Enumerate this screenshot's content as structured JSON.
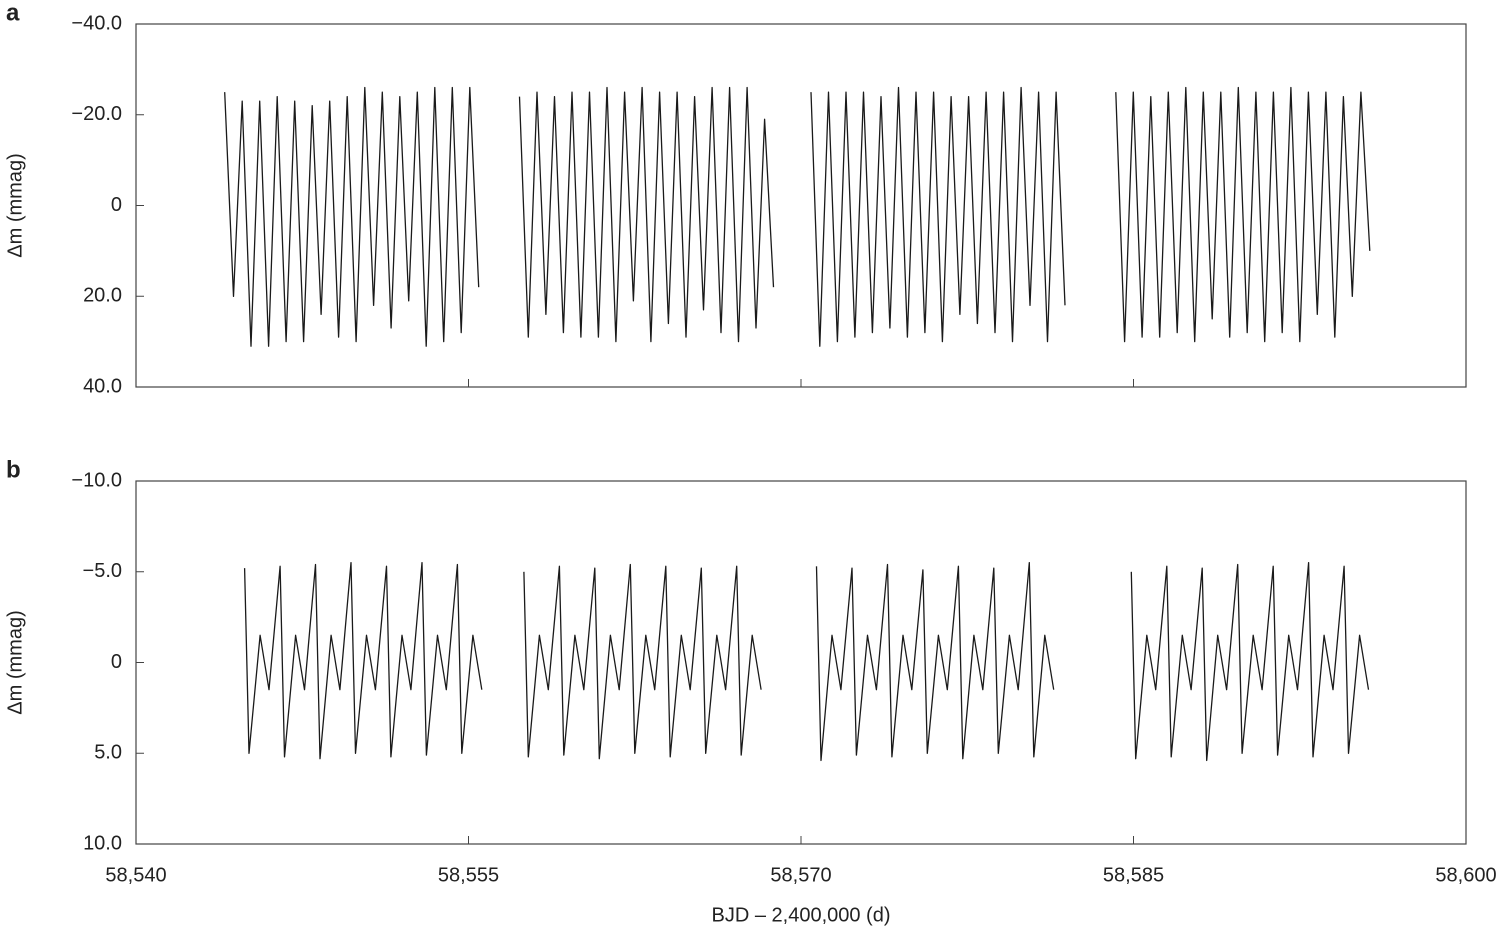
{
  "chart_data": [
    {
      "type": "line",
      "panel_label": "a",
      "ylabel": "Δm (mmag)",
      "xlim": [
        58540,
        58600
      ],
      "xticks": [
        58540,
        58555,
        58570,
        58585,
        58600
      ],
      "ylim": [
        40,
        -40
      ],
      "yticks": [
        {
          "value": -40,
          "label": "−40.0"
        },
        {
          "value": -20,
          "label": "−20.0"
        },
        0,
        {
          "value": 20,
          "label": "20.0"
        },
        {
          "value": 40,
          "label": "40.0"
        }
      ],
      "x": [
        58544.0,
        58544.4,
        58544.79,
        58545.19,
        58545.58,
        58545.98,
        58546.37,
        58546.77,
        58547.16,
        58547.56,
        58547.95,
        58548.35,
        58548.74,
        58549.14,
        58549.53,
        58549.93,
        58550.32,
        58550.72,
        58551.11,
        58551.51,
        58551.9,
        58552.3,
        58552.69,
        58553.09,
        58553.48,
        58553.88,
        58554.27,
        58554.67,
        58555.06,
        58555.46,
        null,
        58557.3,
        58557.7,
        58558.09,
        58558.49,
        58558.88,
        58559.28,
        58559.67,
        58560.07,
        58560.46,
        58560.86,
        58561.25,
        58561.65,
        58562.04,
        58562.44,
        58562.83,
        58563.23,
        58563.62,
        58564.02,
        58564.41,
        58564.81,
        58565.2,
        58565.6,
        58565.99,
        58566.39,
        58566.78,
        58567.18,
        58567.57,
        58567.97,
        58568.36,
        58568.76,
        null,
        58570.45,
        58570.85,
        58571.24,
        58571.64,
        58572.03,
        58572.43,
        58572.82,
        58573.22,
        58573.61,
        58574.01,
        58574.4,
        58574.8,
        58575.19,
        58575.59,
        58575.98,
        58576.38,
        58576.77,
        58577.17,
        58577.56,
        58577.96,
        58578.35,
        58578.75,
        58579.14,
        58579.54,
        58579.93,
        58580.33,
        58580.72,
        58581.12,
        58581.51,
        58581.91,
        null,
        58584.2,
        58584.6,
        58584.99,
        58585.39,
        58585.78,
        58586.18,
        58586.57,
        58586.97,
        58587.36,
        58587.76,
        58588.15,
        58588.55,
        58588.94,
        58589.34,
        58589.73,
        58590.13,
        58590.52,
        58590.92,
        58591.31,
        58591.71,
        58592.1,
        58592.5,
        58592.89,
        58593.29,
        58593.68,
        58594.08,
        58594.47,
        58594.87,
        58595.26,
        58595.66
      ],
      "series": [
        {
          "color": "#1a1a1a",
          "values": [
            -25,
            20,
            -23,
            31,
            -23,
            31,
            -24,
            30,
            -23,
            30,
            -22,
            24,
            -23,
            29,
            -24,
            30,
            -26,
            22,
            -25,
            27,
            -24,
            21,
            -25,
            31,
            -26,
            30,
            -26,
            28,
            -26,
            18,
            null,
            -24,
            29,
            -25,
            24,
            -24,
            28,
            -25,
            29,
            -25,
            29,
            -26,
            30,
            -25,
            21,
            -26,
            30,
            -25,
            26,
            -25,
            29,
            -24,
            23,
            -26,
            28,
            -26,
            30,
            -26,
            27,
            -19,
            18,
            null,
            -25,
            31,
            -25,
            30,
            -25,
            29,
            -25,
            28,
            -24,
            27,
            -26,
            29,
            -25,
            28,
            -25,
            30,
            -24,
            24,
            -24,
            26,
            -25,
            28,
            -25,
            30,
            -26,
            22,
            -25,
            30,
            -25,
            22,
            null,
            -25,
            30,
            -25,
            29,
            -24,
            29,
            -25,
            28,
            -26,
            30,
            -25,
            25,
            -25,
            29,
            -26,
            28,
            -25,
            30,
            -25,
            28,
            -26,
            30,
            -25,
            24,
            -25,
            29,
            -24,
            20,
            -25,
            10
          ]
        }
      ]
    },
    {
      "type": "line",
      "panel_label": "b",
      "ylabel": "Δm (mmag)",
      "xlabel": "BJD – 2,400,000 (d)",
      "xlim": [
        58540,
        58600
      ],
      "xticks": [
        {
          "value": 58540,
          "label": "58,540"
        },
        {
          "value": 58555,
          "label": "58,555"
        },
        {
          "value": 58570,
          "label": "58,570"
        },
        {
          "value": 58585,
          "label": "58,585"
        },
        {
          "value": 58600,
          "label": "58,600"
        }
      ],
      "ylim": [
        10,
        -10
      ],
      "yticks": [
        {
          "value": -10,
          "label": "−10.0"
        },
        {
          "value": -5,
          "label": "−5.0"
        },
        0,
        {
          "value": 5,
          "label": "5.0"
        },
        {
          "value": 10,
          "label": "10.0"
        }
      ],
      "x": [
        58544.9,
        58545.1,
        58545.6,
        58546.0,
        58546.5,
        58546.7,
        58547.2,
        58547.6,
        58548.1,
        58548.3,
        58548.8,
        58549.2,
        58549.7,
        58549.9,
        58550.4,
        58550.8,
        58551.3,
        58551.5,
        58552.0,
        58552.4,
        58552.9,
        58553.1,
        58553.6,
        58554.0,
        58554.5,
        58554.7,
        58555.2,
        58555.6,
        null,
        58557.5,
        58557.7,
        58558.2,
        58558.6,
        58559.1,
        58559.3,
        58559.8,
        58560.2,
        58560.7,
        58560.9,
        58561.4,
        58561.8,
        58562.3,
        58562.5,
        58563.0,
        58563.4,
        58563.9,
        58564.1,
        58564.6,
        58565.0,
        58565.5,
        58565.7,
        58566.2,
        58566.6,
        58567.1,
        58567.3,
        58567.8,
        58568.2,
        null,
        58570.7,
        58570.9,
        58571.4,
        58571.8,
        58572.3,
        58572.5,
        58573.0,
        58573.4,
        58573.9,
        58574.1,
        58574.6,
        58575.0,
        58575.5,
        58575.7,
        58576.2,
        58576.6,
        58577.1,
        58577.3,
        58577.8,
        58578.2,
        58578.7,
        58578.9,
        58579.4,
        58579.8,
        58580.3,
        58580.5,
        58581.0,
        58581.4,
        null,
        58584.9,
        58585.1,
        58585.6,
        58586.0,
        58586.5,
        58586.7,
        58587.2,
        58587.6,
        58588.1,
        58588.3,
        58588.8,
        58589.2,
        58589.7,
        58589.9,
        58590.4,
        58590.8,
        58591.3,
        58591.5,
        58592.0,
        58592.4,
        58592.9,
        58593.1,
        58593.6,
        58594.0,
        58594.5,
        58594.7,
        58595.2,
        58595.6
      ],
      "series": [
        {
          "color": "#1a1a1a",
          "values": [
            -5.2,
            5.0,
            -1.5,
            1.5,
            -5.3,
            5.2,
            -1.5,
            1.5,
            -5.4,
            5.3,
            -1.5,
            1.5,
            -5.5,
            5.0,
            -1.5,
            1.5,
            -5.3,
            5.2,
            -1.5,
            1.5,
            -5.5,
            5.1,
            -1.5,
            1.5,
            -5.4,
            5.0,
            -1.5,
            1.5,
            null,
            -5.0,
            5.2,
            -1.5,
            1.5,
            -5.3,
            5.1,
            -1.5,
            1.5,
            -5.2,
            5.3,
            -1.5,
            1.5,
            -5.4,
            5.0,
            -1.5,
            1.5,
            -5.3,
            5.2,
            -1.5,
            1.5,
            -5.2,
            5.0,
            -1.5,
            1.5,
            -5.3,
            5.1,
            -1.5,
            1.5,
            null,
            -5.3,
            5.4,
            -1.5,
            1.5,
            -5.2,
            5.1,
            -1.5,
            1.5,
            -5.4,
            5.2,
            -1.5,
            1.5,
            -5.1,
            5.0,
            -1.5,
            1.5,
            -5.3,
            5.3,
            -1.5,
            1.5,
            -5.2,
            5.0,
            -1.5,
            1.5,
            -5.5,
            5.2,
            -1.5,
            1.5,
            null,
            -5.0,
            5.3,
            -1.5,
            1.5,
            -5.3,
            5.2,
            -1.5,
            1.5,
            -5.2,
            5.4,
            -1.5,
            1.5,
            -5.4,
            5.0,
            -1.5,
            1.5,
            -5.3,
            5.1,
            -1.5,
            1.5,
            -5.5,
            5.2,
            -1.5,
            1.5,
            -5.3,
            5.0,
            -1.5,
            1.5
          ]
        }
      ]
    }
  ]
}
